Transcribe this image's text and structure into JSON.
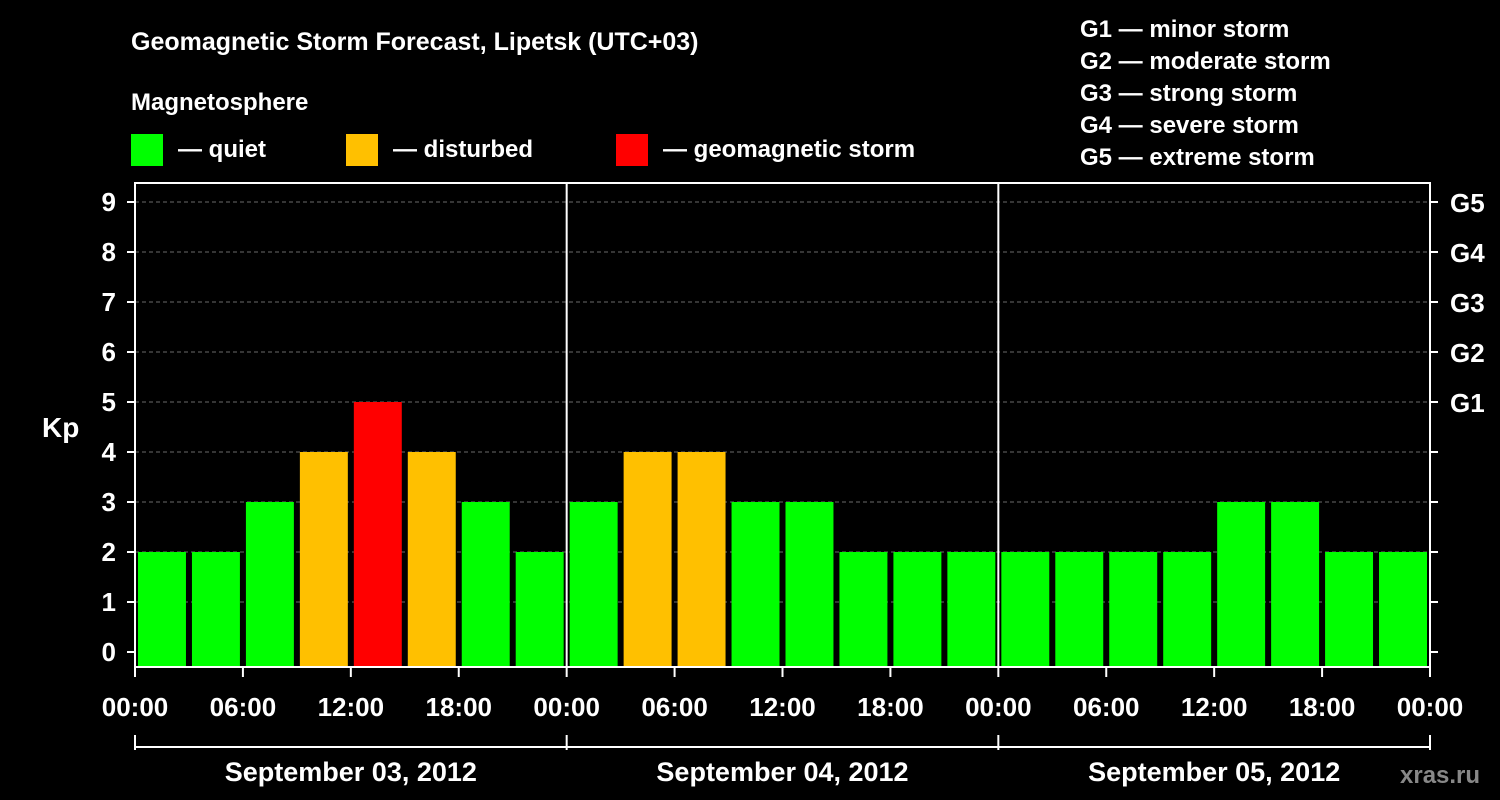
{
  "title": "Geomagnetic Storm Forecast, Lipetsk (UTC+03)",
  "legend": {
    "heading": "Magnetosphere",
    "items": [
      {
        "label": "— quiet",
        "color": "#00ff00"
      },
      {
        "label": "— disturbed",
        "color": "#ffc000"
      },
      {
        "label": "— geomagnetic storm",
        "color": "#ff0000"
      }
    ]
  },
  "storm_scale": [
    "G1 — minor storm",
    "G2 — moderate storm",
    "G3 — strong storm",
    "G4 — severe storm",
    "G5 — extreme storm"
  ],
  "watermark": "xras.ru",
  "chart_data": {
    "type": "bar",
    "ylabel": "Kp",
    "ylim": [
      0,
      9
    ],
    "y_ticks": [
      "0",
      "1",
      "2",
      "3",
      "4",
      "5",
      "6",
      "7",
      "8",
      "9"
    ],
    "right_axis": [
      {
        "kp": 5,
        "label": "G1"
      },
      {
        "kp": 6,
        "label": "G2"
      },
      {
        "kp": 7,
        "label": "G3"
      },
      {
        "kp": 8,
        "label": "G4"
      },
      {
        "kp": 9,
        "label": "G5"
      }
    ],
    "grid": true,
    "x_ticks": [
      "00:00",
      "06:00",
      "12:00",
      "18:00",
      "00:00",
      "06:00",
      "12:00",
      "18:00",
      "00:00",
      "06:00",
      "12:00",
      "18:00",
      "00:00"
    ],
    "days": [
      "September 03, 2012",
      "September 04, 2012",
      "September 05, 2012"
    ],
    "interval_hours": 3,
    "values": [
      2,
      2,
      3,
      4,
      5,
      4,
      3,
      2,
      3,
      4,
      4,
      3,
      3,
      2,
      2,
      2,
      2,
      2,
      2,
      2,
      3,
      3,
      2,
      2
    ],
    "thresholds": {
      "disturbed": 4,
      "storm": 5
    },
    "colors": {
      "quiet": "#00ff00",
      "disturbed": "#ffc000",
      "storm": "#ff0000"
    }
  }
}
